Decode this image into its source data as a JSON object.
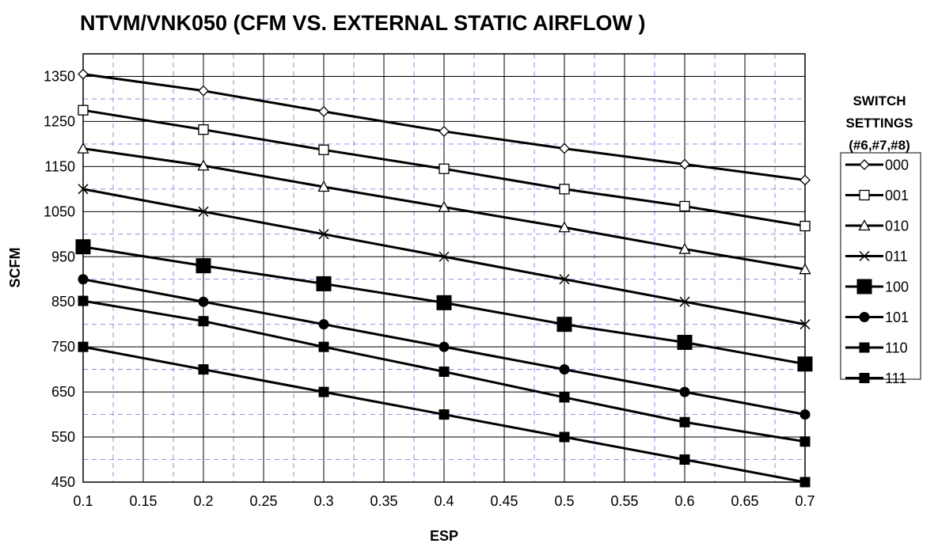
{
  "chart_data": {
    "type": "line",
    "title": "NTVM/VNK050 (CFM VS. EXTERNAL STATIC AIRFLOW )",
    "xlabel": "ESP",
    "ylabel": "SCFM",
    "xlim": [
      0.1,
      0.7
    ],
    "ylim": [
      450,
      1400
    ],
    "x_ticks": [
      "0.1",
      "0.15",
      "0.2",
      "0.25",
      "0.3",
      "0.35",
      "0.4",
      "0.45",
      "0.5",
      "0.55",
      "0.6",
      "0.65",
      "0.7"
    ],
    "y_ticks": [
      "450",
      "550",
      "650",
      "750",
      "850",
      "950",
      "1050",
      "1150",
      "1250",
      "1350"
    ],
    "grid": true,
    "legend_title": [
      "SWITCH",
      "SETTINGS",
      "(#6,#7,#8)"
    ],
    "legend_position": "right",
    "x": [
      0.1,
      0.2,
      0.3,
      0.4,
      0.5,
      0.6,
      0.7
    ],
    "series": [
      {
        "name": "000",
        "marker": "diamond-open",
        "values": [
          1355,
          1318,
          1272,
          1228,
          1190,
          1155,
          1120
        ]
      },
      {
        "name": "001",
        "marker": "square-open",
        "values": [
          1275,
          1232,
          1187,
          1145,
          1100,
          1062,
          1018
        ]
      },
      {
        "name": "010",
        "marker": "triangle-open",
        "values": [
          1190,
          1152,
          1105,
          1060,
          1015,
          967,
          922
        ]
      },
      {
        "name": "011",
        "marker": "x",
        "values": [
          1100,
          1050,
          1000,
          950,
          900,
          850,
          800
        ]
      },
      {
        "name": "100",
        "marker": "square-large",
        "values": [
          972,
          930,
          890,
          848,
          800,
          760,
          712
        ]
      },
      {
        "name": "101",
        "marker": "circle",
        "values": [
          900,
          850,
          800,
          750,
          700,
          650,
          600
        ]
      },
      {
        "name": "110",
        "marker": "square",
        "values": [
          852,
          807,
          750,
          695,
          638,
          583,
          540
        ]
      },
      {
        "name": "111",
        "marker": "square",
        "values": [
          750,
          700,
          650,
          600,
          550,
          500,
          450
        ]
      }
    ]
  }
}
